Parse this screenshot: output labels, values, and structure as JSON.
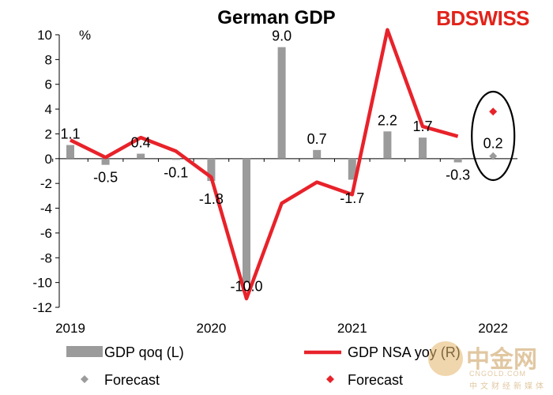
{
  "brand": {
    "text": "BDSWISS",
    "color": "#e2231a"
  },
  "watermark": {
    "logo_text": "中金网",
    "url": "CNGOLD.COM",
    "subtitle": "中文财经新媒体"
  },
  "colors": {
    "bar": "#9b9b9b",
    "line": "#e8222a",
    "forecast_bar": "#9b9b9b",
    "forecast_line": "#e8222a"
  },
  "chart_data": {
    "type": "bar",
    "title": "German GDP",
    "y_unit_label": "%",
    "ylim": [
      -12,
      10
    ],
    "yticks": [
      10,
      8,
      6,
      4,
      2,
      0,
      -2,
      -4,
      -6,
      -8,
      -10,
      -12
    ],
    "x_year_labels": [
      "2019",
      "2020",
      "2021",
      "2022"
    ],
    "quarters": [
      "2019Q1",
      "2019Q2",
      "2019Q3",
      "2019Q4",
      "2020Q1",
      "2020Q2",
      "2020Q3",
      "2020Q4",
      "2021Q1",
      "2021Q2",
      "2021Q3",
      "2021Q4",
      "2022Q1"
    ],
    "series": [
      {
        "name": "GDP qoq (L)",
        "type": "bar",
        "values": [
          1.1,
          -0.5,
          0.4,
          -0.1,
          -1.8,
          -10.0,
          9.0,
          0.7,
          -1.7,
          2.2,
          1.7,
          -0.3,
          null
        ],
        "labels": [
          "1.1",
          "-0.5",
          "0.4",
          "-0.1",
          "-1.8",
          "-10.0",
          "9.0",
          "0.7",
          "-1.7",
          "2.2",
          "1.7",
          "-0.3",
          ""
        ]
      },
      {
        "name": "GDP NSA yoy (R)",
        "type": "line",
        "values": [
          1.5,
          0.1,
          1.7,
          0.6,
          -1.5,
          -11.3,
          -3.6,
          -1.9,
          -2.9,
          10.4,
          2.6,
          1.8,
          null
        ]
      }
    ],
    "forecasts": [
      {
        "name": "Forecast",
        "series": "GDP qoq (L)",
        "x": "2022Q1",
        "value": 0.2,
        "label": "0.2"
      },
      {
        "name": "Forecast",
        "series": "GDP NSA yoy (R)",
        "x": "2022Q1",
        "value": 3.8
      }
    ],
    "legend": [
      {
        "label": "GDP qoq (L)",
        "marker": "bar"
      },
      {
        "label": "GDP NSA yoy (R)",
        "marker": "line"
      },
      {
        "label": "Forecast",
        "marker": "grey-diamond"
      },
      {
        "label": "Forecast",
        "marker": "red-diamond"
      }
    ],
    "legend_position": "bottom",
    "grid": false
  }
}
